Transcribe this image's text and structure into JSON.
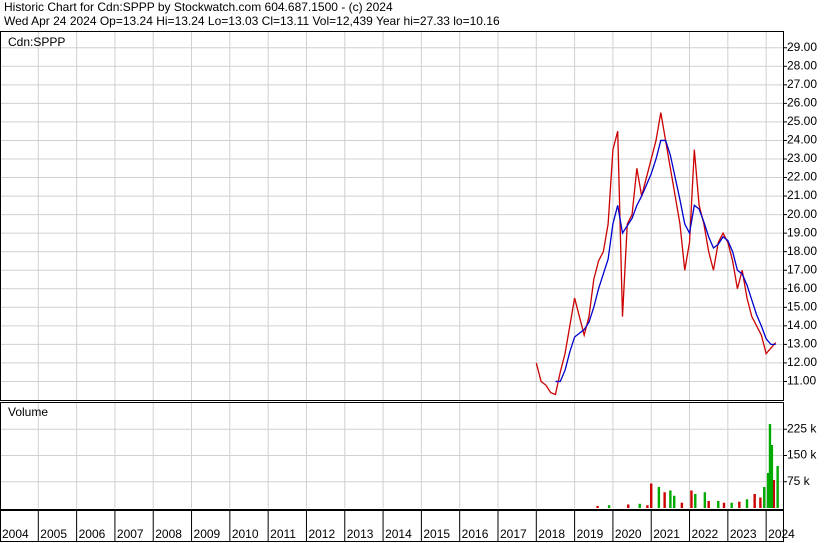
{
  "header": {
    "line1": "Historic Chart for Cdn:SPPP by Stockwatch.com 604.687.1500 - (c) 2024",
    "line2": "Wed Apr 24 2024   Op=13.24   Hi=13.24   Lo=13.03   Cl=13.11   Vol=12,439   Year hi=27.33   lo=10.16"
  },
  "chart_data": [
    {
      "type": "line",
      "label": "Cdn:SPPP",
      "xlim": [
        2004,
        2024.44
      ],
      "ylim": [
        10,
        29.85
      ],
      "grid": true,
      "yticks": [
        {
          "value": 11,
          "label": "11.00"
        },
        {
          "value": 12,
          "label": "12.00"
        },
        {
          "value": 13,
          "label": "13.00"
        },
        {
          "value": 14,
          "label": "14.00"
        },
        {
          "value": 15,
          "label": "15.00"
        },
        {
          "value": 16,
          "label": "16.00"
        },
        {
          "value": 17,
          "label": "17.00"
        },
        {
          "value": 18,
          "label": "18.00"
        },
        {
          "value": 19,
          "label": "19.00"
        },
        {
          "value": 20,
          "label": "20.00"
        },
        {
          "value": 21,
          "label": "21.00"
        },
        {
          "value": 22,
          "label": "22.00"
        },
        {
          "value": 23,
          "label": "23.00"
        },
        {
          "value": 24,
          "label": "24.00"
        },
        {
          "value": 25,
          "label": "25.00"
        },
        {
          "value": 26,
          "label": "26.00"
        },
        {
          "value": 27,
          "label": "27.00"
        },
        {
          "value": 28,
          "label": "28.00"
        },
        {
          "value": 29,
          "label": "29.00"
        }
      ],
      "x": [
        2018.0,
        2018.125,
        2018.25,
        2018.375,
        2018.5,
        2018.625,
        2018.75,
        2018.875,
        2019.0,
        2019.125,
        2019.25,
        2019.375,
        2019.5,
        2019.625,
        2019.75,
        2019.875,
        2020.0,
        2020.125,
        2020.25,
        2020.375,
        2020.5,
        2020.625,
        2020.75,
        2020.875,
        2021.0,
        2021.125,
        2021.25,
        2021.375,
        2021.5,
        2021.625,
        2021.75,
        2021.875,
        2022.0,
        2022.125,
        2022.25,
        2022.375,
        2022.5,
        2022.625,
        2022.75,
        2022.875,
        2023.0,
        2023.125,
        2023.25,
        2023.375,
        2023.5,
        2023.625,
        2023.75,
        2023.875,
        2024.0,
        2024.125,
        2024.25
      ],
      "series": [
        {
          "color": "#cc0000",
          "values": [
            12.0,
            11.0,
            10.8,
            10.4,
            10.3,
            11.5,
            12.5,
            14.0,
            15.5,
            14.5,
            13.5,
            14.5,
            16.5,
            17.5,
            18.0,
            19.5,
            23.5,
            24.5,
            14.5,
            19.5,
            20.0,
            22.5,
            21.0,
            22.0,
            23.0,
            24.0,
            25.5,
            24.0,
            22.5,
            21.0,
            19.5,
            17.0,
            18.5,
            23.5,
            20.5,
            19.5,
            18.0,
            17.0,
            18.5,
            19.0,
            18.5,
            17.5,
            16.0,
            17.0,
            15.5,
            14.5,
            14.0,
            13.5,
            12.5,
            12.8,
            13.1
          ]
        },
        {
          "color": "#0000cc",
          "values": [
            null,
            null,
            null,
            null,
            11.0,
            11.0,
            11.6,
            12.6,
            13.4,
            13.6,
            13.8,
            14.2,
            15.0,
            16.0,
            16.8,
            17.6,
            19.5,
            20.5,
            19.0,
            19.4,
            19.8,
            20.5,
            21.0,
            21.6,
            22.2,
            23.0,
            24.0,
            24.0,
            23.2,
            22.0,
            20.8,
            19.5,
            19.0,
            20.5,
            20.3,
            19.6,
            18.8,
            18.2,
            18.4,
            18.8,
            18.6,
            18.0,
            17.0,
            16.8,
            16.2,
            15.4,
            14.6,
            14.0,
            13.3,
            13.0,
            13.0
          ]
        }
      ]
    },
    {
      "type": "bar",
      "label": "Volume",
      "xlim": [
        2004,
        2024.44
      ],
      "ylim": [
        0,
        300000
      ],
      "grid": true,
      "xticks": [
        2004,
        2005,
        2006,
        2007,
        2008,
        2009,
        2010,
        2011,
        2012,
        2013,
        2014,
        2015,
        2016,
        2017,
        2018,
        2019,
        2020,
        2021,
        2022,
        2023,
        2024
      ],
      "yticks": [
        {
          "value": 75000,
          "label": "75 k"
        },
        {
          "value": 150000,
          "label": "150 k"
        },
        {
          "value": 225000,
          "label": "225 k"
        }
      ],
      "series": [
        {
          "color": "#cc0000",
          "x": [
            2019.6,
            2020.4,
            2020.9,
            2021.0,
            2021.35,
            2021.8,
            2022.05,
            2022.5,
            2022.9,
            2023.3,
            2023.7,
            2023.85,
            2024.2
          ],
          "values": [
            6000,
            10000,
            8000,
            70000,
            45000,
            15000,
            50000,
            20000,
            15000,
            18000,
            40000,
            30000,
            80000
          ]
        },
        {
          "color": "#00aa00",
          "x": [
            2019.9,
            2020.7,
            2021.2,
            2021.5,
            2021.6,
            2022.15,
            2022.4,
            2022.75,
            2023.1,
            2023.5,
            2023.95,
            2024.05,
            2024.1,
            2024.15,
            2024.3
          ],
          "values": [
            8000,
            12000,
            60000,
            50000,
            35000,
            40000,
            45000,
            20000,
            15000,
            25000,
            60000,
            100000,
            240000,
            180000,
            120000
          ]
        }
      ]
    }
  ]
}
